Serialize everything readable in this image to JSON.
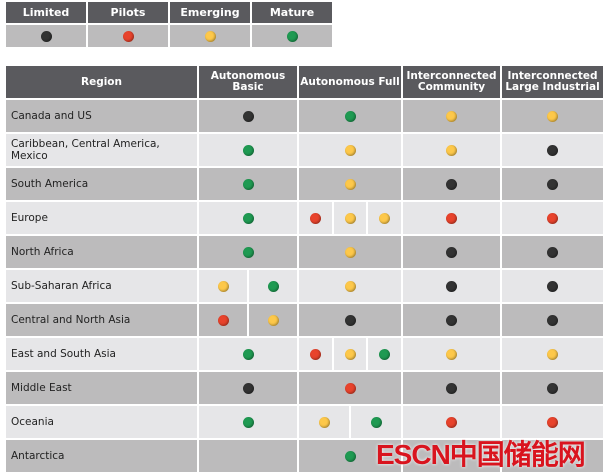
{
  "colors": {
    "limited": "#333333",
    "pilots": "#e8432c",
    "emerging": "#fdc84a",
    "mature": "#1f9a52"
  },
  "legend": [
    {
      "label": "Limited",
      "status": "limited"
    },
    {
      "label": "Pilots",
      "status": "pilots"
    },
    {
      "label": "Emerging",
      "status": "emerging"
    },
    {
      "label": "Mature",
      "status": "mature"
    }
  ],
  "table": {
    "headers": [
      "Region",
      "Autonomous Basic",
      "Autonomous Full",
      "Interconnected Community",
      "Interconnected Large Industrial"
    ],
    "rows": [
      {
        "region": "Canada and US",
        "cells": [
          [
            "limited"
          ],
          [
            "mature"
          ],
          [
            "emerging"
          ],
          [
            "emerging"
          ]
        ]
      },
      {
        "region": "Caribbean, Central America, Mexico",
        "cells": [
          [
            "mature"
          ],
          [
            "emerging"
          ],
          [
            "emerging"
          ],
          [
            "limited"
          ]
        ]
      },
      {
        "region": "South America",
        "cells": [
          [
            "mature"
          ],
          [
            "emerging"
          ],
          [
            "limited"
          ],
          [
            "limited"
          ]
        ]
      },
      {
        "region": "Europe",
        "cells": [
          [
            "mature"
          ],
          [
            "pilots",
            "emerging",
            "emerging"
          ],
          [
            "pilots"
          ],
          [
            "pilots"
          ]
        ]
      },
      {
        "region": "North Africa",
        "cells": [
          [
            "mature"
          ],
          [
            "emerging"
          ],
          [
            "limited"
          ],
          [
            "limited"
          ]
        ]
      },
      {
        "region": "Sub-Saharan Africa",
        "cells": [
          [
            "emerging",
            "mature"
          ],
          [
            "emerging"
          ],
          [
            "limited"
          ],
          [
            "limited"
          ]
        ]
      },
      {
        "region": "Central and North Asia",
        "cells": [
          [
            "pilots",
            "emerging"
          ],
          [
            "limited"
          ],
          [
            "limited"
          ],
          [
            "limited"
          ]
        ]
      },
      {
        "region": "East and South Asia",
        "cells": [
          [
            "mature"
          ],
          [
            "pilots",
            "emerging",
            "mature"
          ],
          [
            "emerging"
          ],
          [
            "emerging"
          ]
        ]
      },
      {
        "region": "Middle East",
        "cells": [
          [
            "limited"
          ],
          [
            "pilots"
          ],
          [
            "limited"
          ],
          [
            "limited"
          ]
        ]
      },
      {
        "region": "Oceania",
        "cells": [
          [
            "mature"
          ],
          [
            "emerging",
            "mature"
          ],
          [
            "pilots"
          ],
          [
            "pilots"
          ]
        ]
      },
      {
        "region": "Antarctica",
        "cells": [
          [],
          [
            "mature"
          ],
          [],
          []
        ]
      }
    ]
  },
  "watermark": "ESCN中国储能网"
}
